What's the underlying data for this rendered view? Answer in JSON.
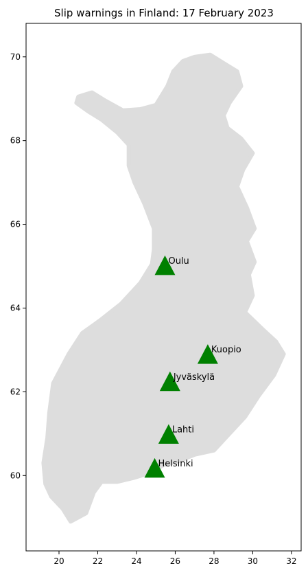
{
  "chart_data": {
    "type": "map",
    "title": "Slip warnings in Finland: 17 February 2023",
    "xlabel": "",
    "ylabel": "",
    "xlim": [
      18.3,
      32.5
    ],
    "ylim": [
      58.2,
      70.8
    ],
    "x_ticks": [
      20,
      22,
      24,
      26,
      28,
      30,
      32
    ],
    "y_ticks": [
      60,
      62,
      64,
      66,
      68,
      70
    ],
    "grid": false,
    "land_color": "#dddddd",
    "marker_color": "#008000",
    "marker_shape": "triangle",
    "points": [
      {
        "name": "Oulu",
        "lon": 25.47,
        "lat": 65.01
      },
      {
        "name": "Kuopio",
        "lon": 27.68,
        "lat": 62.89
      },
      {
        "name": "Jyväskylä",
        "lon": 25.73,
        "lat": 62.24
      },
      {
        "name": "Lahti",
        "lon": 25.66,
        "lat": 60.98
      },
      {
        "name": "Helsinki",
        "lon": 24.94,
        "lat": 60.17
      }
    ],
    "outline": [
      [
        21.0,
        69.05
      ],
      [
        21.7,
        69.15
      ],
      [
        22.4,
        68.95
      ],
      [
        23.3,
        68.72
      ],
      [
        24.2,
        68.75
      ],
      [
        25.0,
        68.85
      ],
      [
        25.6,
        69.3
      ],
      [
        25.9,
        69.65
      ],
      [
        26.4,
        69.9
      ],
      [
        27.0,
        70.0
      ],
      [
        27.8,
        70.05
      ],
      [
        28.5,
        69.85
      ],
      [
        29.2,
        69.65
      ],
      [
        29.4,
        69.3
      ],
      [
        28.8,
        68.9
      ],
      [
        28.5,
        68.6
      ],
      [
        28.7,
        68.3
      ],
      [
        29.4,
        68.05
      ],
      [
        30.0,
        67.7
      ],
      [
        29.5,
        67.3
      ],
      [
        29.2,
        66.9
      ],
      [
        29.7,
        66.4
      ],
      [
        30.1,
        65.9
      ],
      [
        29.7,
        65.6
      ],
      [
        30.1,
        65.1
      ],
      [
        29.8,
        64.8
      ],
      [
        30.0,
        64.3
      ],
      [
        29.6,
        63.9
      ],
      [
        30.5,
        63.5
      ],
      [
        31.2,
        63.2
      ],
      [
        31.6,
        62.9
      ],
      [
        31.1,
        62.4
      ],
      [
        30.3,
        61.9
      ],
      [
        29.6,
        61.4
      ],
      [
        28.8,
        61.0
      ],
      [
        28.0,
        60.6
      ],
      [
        27.0,
        60.5
      ],
      [
        26.2,
        60.35
      ],
      [
        25.4,
        60.25
      ],
      [
        24.6,
        60.05
      ],
      [
        23.9,
        59.95
      ],
      [
        23.0,
        59.85
      ],
      [
        22.2,
        59.85
      ],
      [
        21.8,
        59.6
      ],
      [
        21.4,
        59.1
      ],
      [
        20.6,
        58.9
      ],
      [
        20.2,
        59.2
      ],
      [
        19.6,
        59.5
      ],
      [
        19.3,
        59.8
      ],
      [
        19.2,
        60.3
      ],
      [
        19.4,
        60.9
      ],
      [
        19.5,
        61.5
      ],
      [
        19.7,
        62.2
      ],
      [
        20.5,
        62.9
      ],
      [
        21.2,
        63.4
      ],
      [
        22.1,
        63.7
      ],
      [
        23.2,
        64.1
      ],
      [
        24.2,
        64.6
      ],
      [
        24.8,
        65.05
      ],
      [
        24.9,
        65.4
      ],
      [
        24.9,
        65.9
      ],
      [
        24.4,
        66.5
      ],
      [
        23.9,
        67.0
      ],
      [
        23.6,
        67.4
      ],
      [
        23.6,
        67.9
      ],
      [
        23.0,
        68.2
      ],
      [
        22.2,
        68.5
      ],
      [
        21.5,
        68.7
      ],
      [
        20.9,
        68.9
      ]
    ]
  }
}
